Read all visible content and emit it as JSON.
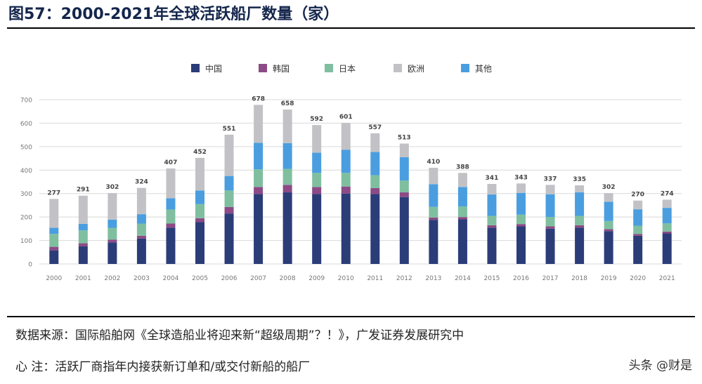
{
  "figure": {
    "title": "图57：2000-2021年全球活跃船厂数量（家）"
  },
  "chart_data": {
    "type": "bar",
    "stacked": true,
    "categories": [
      "2000",
      "2001",
      "2002",
      "2003",
      "2004",
      "2005",
      "2006",
      "2007",
      "2008",
      "2009",
      "2010",
      "2011",
      "2012",
      "2013",
      "2014",
      "2015",
      "2016",
      "2017",
      "2018",
      "2019",
      "2020",
      "2021"
    ],
    "totals": [
      277,
      291,
      302,
      324,
      407,
      452,
      551,
      678,
      658,
      592,
      601,
      557,
      513,
      410,
      388,
      341,
      343,
      337,
      335,
      302,
      270,
      274
    ],
    "series": [
      {
        "name": "中国",
        "color": "#2b3d78",
        "values": [
          58,
          75,
          92,
          108,
          155,
          178,
          215,
          298,
          305,
          298,
          300,
          298,
          285,
          188,
          190,
          155,
          160,
          150,
          155,
          140,
          120,
          130
        ]
      },
      {
        "name": "韩国",
        "color": "#8c4a86",
        "values": [
          15,
          13,
          12,
          12,
          17,
          17,
          28,
          30,
          32,
          30,
          30,
          25,
          20,
          10,
          10,
          10,
          10,
          10,
          10,
          8,
          8,
          8
        ]
      },
      {
        "name": "日本",
        "color": "#7fbf9f",
        "values": [
          55,
          55,
          50,
          52,
          60,
          60,
          70,
          75,
          68,
          60,
          58,
          55,
          50,
          45,
          45,
          40,
          40,
          40,
          40,
          35,
          35,
          35
        ]
      },
      {
        "name": "其他",
        "color": "#4a9ee0",
        "values": [
          26,
          28,
          35,
          40,
          48,
          58,
          62,
          113,
          110,
          86,
          99,
          99,
          100,
          97,
          83,
          91,
          93,
          97,
          100,
          82,
          70,
          66
        ]
      },
      {
        "name": "欧洲",
        "color": "#c2c2c6",
        "values": [
          123,
          120,
          113,
          112,
          127,
          139,
          176,
          162,
          143,
          118,
          114,
          80,
          58,
          70,
          60,
          45,
          40,
          40,
          30,
          37,
          37,
          35
        ]
      }
    ],
    "legend_order": [
      "中国",
      "韩国",
      "日本",
      "欧洲",
      "其他"
    ],
    "legend_placement": "top-center",
    "ylim": [
      0,
      700
    ],
    "yticks": [
      0,
      100,
      200,
      300,
      400,
      500,
      600,
      700
    ],
    "grid": true,
    "xlabel": "",
    "ylabel": ""
  },
  "footer": {
    "source": "数据来源：国际船舶网《全球造船业将迎来新“超级周期”？！》，广发证券发展研究中",
    "note": "心 注：活跃厂商指年内接获新订单和/或交付新船的船厂",
    "watermark": "头条 @财是"
  }
}
